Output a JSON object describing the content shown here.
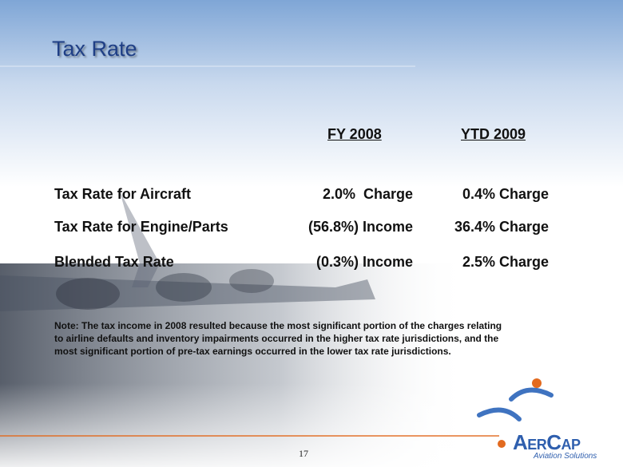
{
  "slide": {
    "title": "Tax Rate",
    "table": {
      "header": [
        "FY 2008",
        "YTD 2009"
      ],
      "rows": [
        [
          "Tax Rate for Aircraft",
          "2.0%  Charge",
          "0.4% Charge"
        ],
        [
          "Tax Rate for Engine/Parts",
          "(56.8%) Income",
          "36.4% Charge"
        ],
        [
          "Blended Tax Rate",
          "(0.3%) Income",
          "2.5% Charge"
        ]
      ]
    },
    "note": [
      "Note: The tax income in 2008 resulted because the most significant portion of the charges relating",
      "to airline defaults and inventory impairments occurred in the higher tax rate jurisdictions, and the",
      "most significant portion of pre-tax earnings occurred in the lower tax rate jurisdictions."
    ],
    "page_number": "17",
    "logo": {
      "name": "AerCap",
      "tagline": "Aviation Solutions"
    }
  }
}
